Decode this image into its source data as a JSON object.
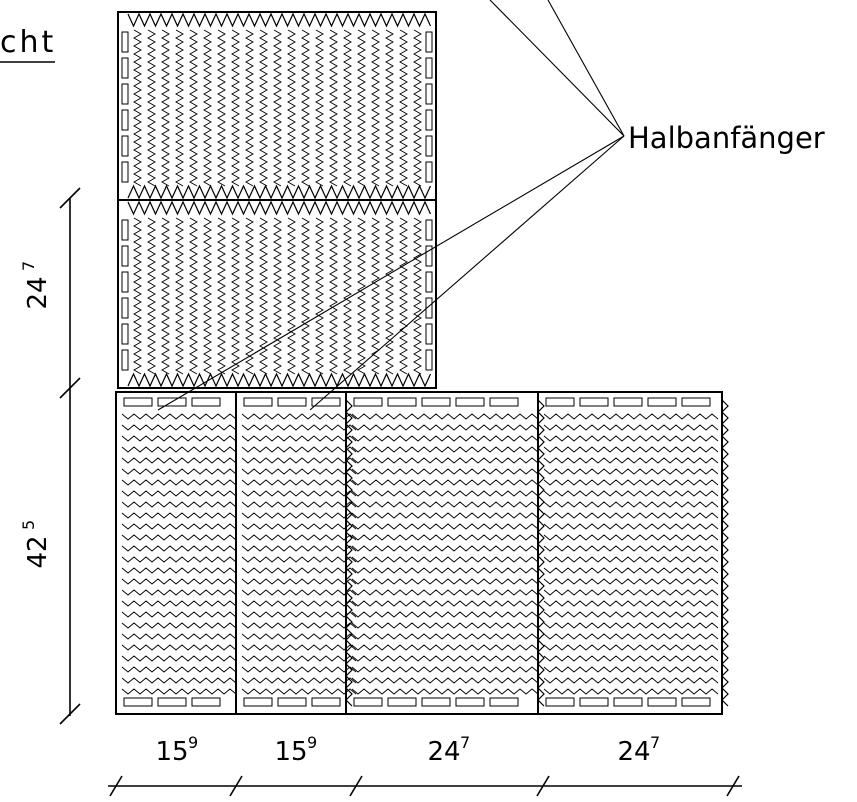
{
  "header": {
    "title_fragment": "cht"
  },
  "labels": {
    "callout": "Halbanfänger"
  },
  "dimensions": {
    "vertical": [
      {
        "base": "24",
        "sup": "7"
      },
      {
        "base": "42",
        "sup": "5"
      }
    ],
    "horizontal": [
      {
        "base": "15",
        "sup": "9"
      },
      {
        "base": "15",
        "sup": "9"
      },
      {
        "base": "24",
        "sup": "7"
      },
      {
        "base": "24",
        "sup": "7"
      }
    ]
  },
  "colors": {
    "ink": "#000000",
    "background": "#ffffff"
  }
}
